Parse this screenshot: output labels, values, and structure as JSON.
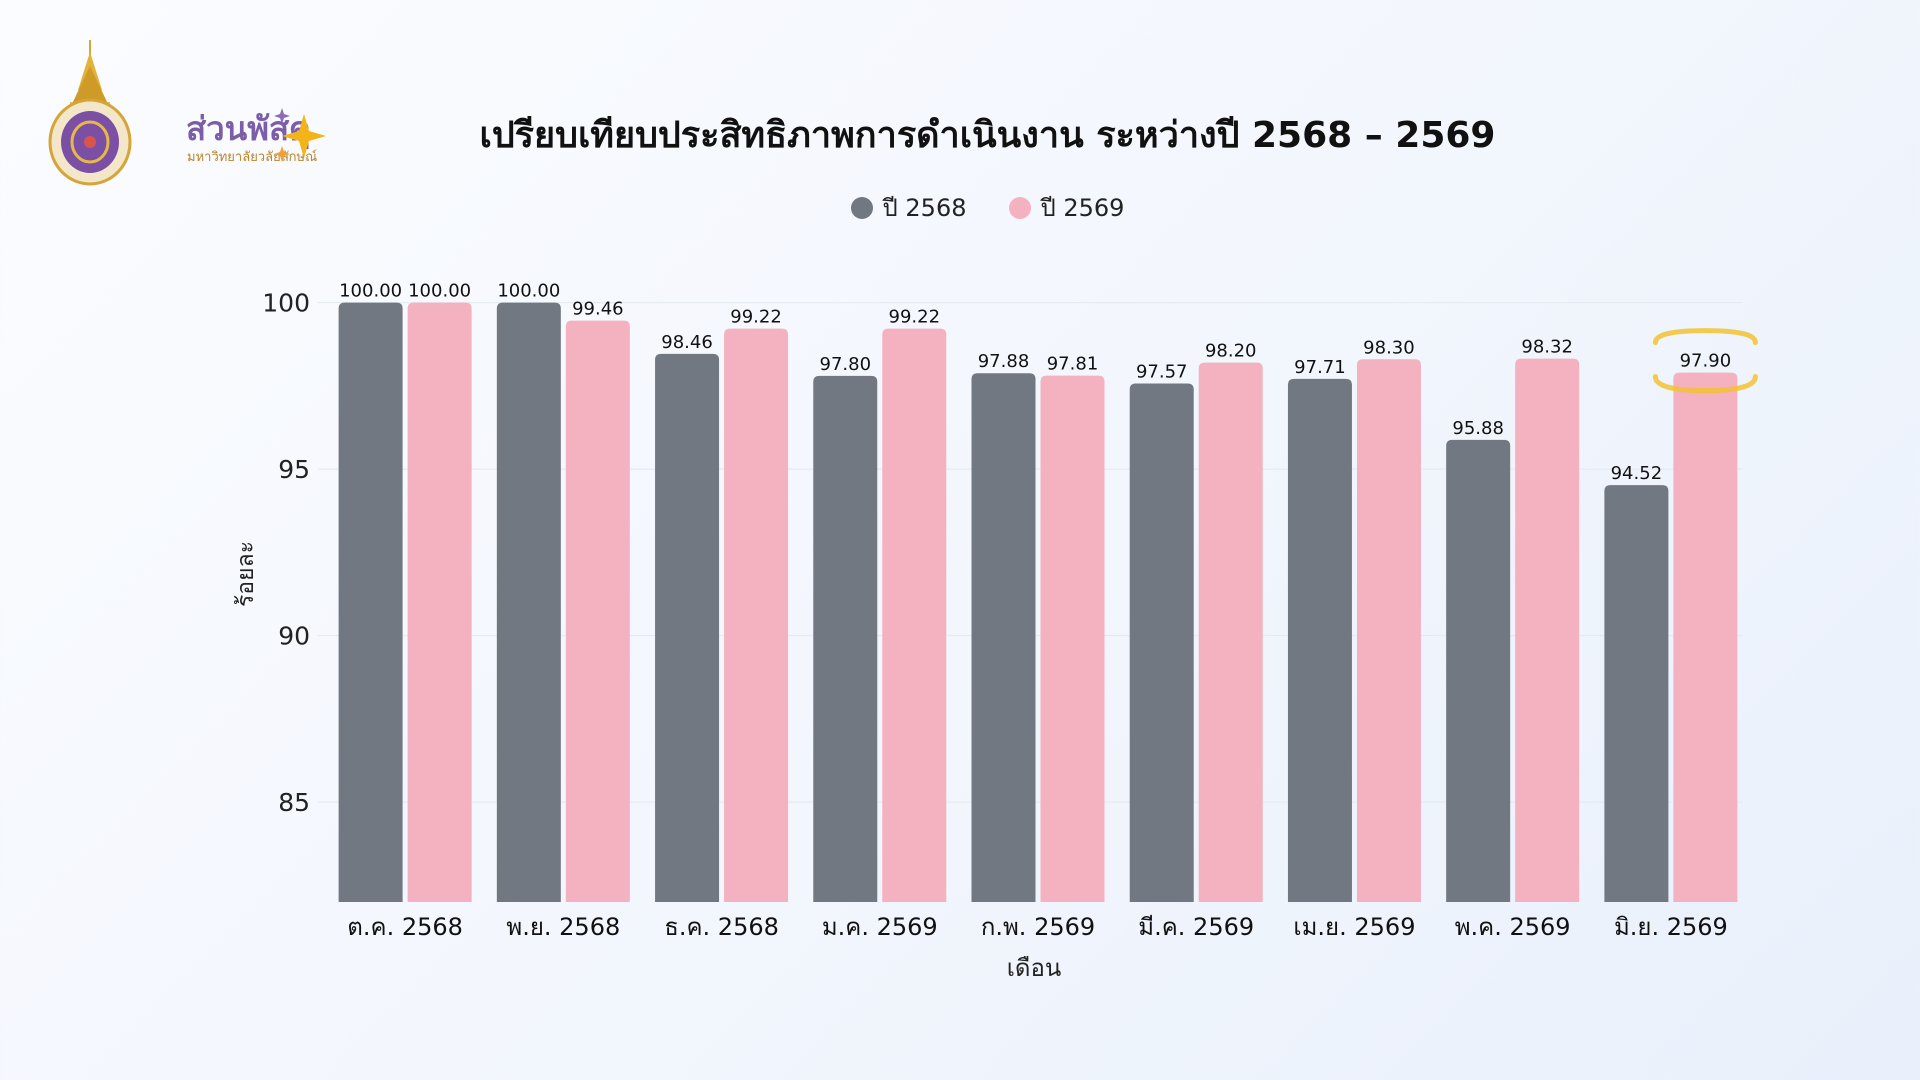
{
  "logo": {
    "name": "ส่วนพัสดุ",
    "subtitle": "มหาวิทยาลัยวลัยลักษณ์"
  },
  "chart_data": {
    "type": "bar",
    "title": "เปรียบเทียบประสิทธิภาพการดำเนินงาน ระหว่างปี 2568 – 2569",
    "xlabel": "เดือน",
    "ylabel": "ร้อยละ",
    "ylim": [
      82,
      100.5
    ],
    "yticks": [
      85,
      90,
      95,
      100
    ],
    "grid": true,
    "legend_position": "top-center",
    "categories": [
      "ต.ค. 2568",
      "พ.ย. 2568",
      "ธ.ค. 2568",
      "ม.ค. 2569",
      "ก.พ. 2569",
      "มี.ค. 2569",
      "เม.ย. 2569",
      "พ.ค. 2569",
      "มิ.ย. 2569"
    ],
    "series": [
      {
        "name": "ปี 2568",
        "color": "#727882",
        "values": [
          100.0,
          100.0,
          98.46,
          97.8,
          97.88,
          97.57,
          97.71,
          95.88,
          94.52
        ],
        "labels": [
          "100.00",
          "100.00",
          "98.46",
          "97.80",
          "97.88",
          "97.57",
          "97.71",
          "95.88",
          "94.52"
        ]
      },
      {
        "name": "ปี 2569",
        "color": "#f4b1bf",
        "values": [
          100.0,
          99.46,
          99.22,
          99.22,
          97.81,
          98.2,
          98.3,
          98.32,
          97.9
        ],
        "labels": [
          "100.00",
          "99.46",
          "99.22",
          "99.22",
          "97.81",
          "98.20",
          "98.30",
          "98.32",
          "97.90"
        ]
      }
    ],
    "highlight": {
      "series": 1,
      "category": 8,
      "color": "#f2c230"
    }
  }
}
